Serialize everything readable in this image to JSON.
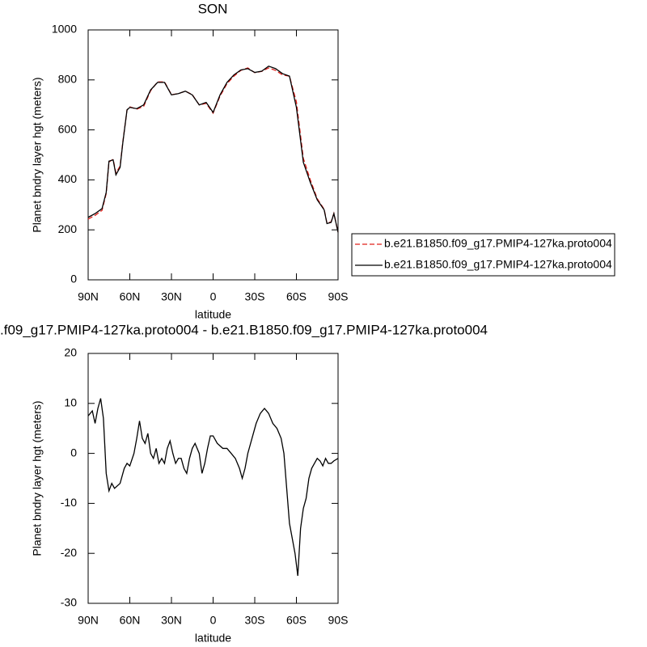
{
  "chart_data": [
    {
      "type": "line",
      "title": "SON",
      "xlabel": "latitude",
      "ylabel": "Planet bndry layer hgt (meters)",
      "x": [
        90,
        85,
        80,
        77,
        75,
        72,
        70,
        67,
        65,
        62,
        60,
        55,
        50,
        45,
        40,
        35,
        30,
        25,
        20,
        15,
        10,
        5,
        0,
        -5,
        -10,
        -15,
        -20,
        -25,
        -30,
        -35,
        -40,
        -45,
        -50,
        -55,
        -60,
        -65,
        -70,
        -75,
        -80,
        -82,
        -85,
        -87,
        -90
      ],
      "series": [
        {
          "name": "b.e21.B1850.f09_g17.PMIP4-127ka.proto004",
          "color": "#e0201b",
          "dashed": true,
          "values": [
            243,
            258,
            278,
            345,
            472,
            482,
            428,
            455,
            553,
            680,
            692,
            683,
            694,
            757,
            792,
            792,
            741,
            745,
            755,
            741,
            700,
            706,
            667,
            735,
            785,
            815,
            838,
            848,
            829,
            834,
            848,
            838,
            820,
            815,
            712,
            486,
            400,
            325,
            282,
            227,
            232,
            266,
            191
          ]
        },
        {
          "name": "b.e21.B1850.f09_g17.PMIP4-127ka.proto004",
          "color": "#000000",
          "dashed": false,
          "values": [
            250,
            265,
            285,
            350,
            475,
            480,
            420,
            450,
            550,
            680,
            690,
            685,
            700,
            760,
            790,
            790,
            740,
            745,
            755,
            740,
            700,
            710,
            670,
            740,
            790,
            820,
            840,
            845,
            830,
            835,
            855,
            845,
            825,
            815,
            690,
            470,
            390,
            320,
            280,
            225,
            230,
            265,
            190
          ]
        }
      ],
      "xlim": [
        90,
        -90
      ],
      "xticks": [
        {
          "value": 90,
          "label": "90N"
        },
        {
          "value": 60,
          "label": "60N"
        },
        {
          "value": 30,
          "label": "30N"
        },
        0,
        {
          "value": -30,
          "label": "30S"
        },
        {
          "value": -60,
          "label": "60S"
        },
        {
          "value": -90,
          "label": "90S"
        }
      ],
      "ylim": [
        0,
        1000
      ],
      "yticks": [
        0,
        200,
        400,
        600,
        800,
        1000
      ],
      "legend": "right"
    },
    {
      "type": "line",
      "title": ".f09_g17.PMIP4-127ka.proto004 - b.e21.B1850.f09_g17.PMIP4-127ka.proto004",
      "xlabel": "latitude",
      "ylabel": "Planet bndry layer hgt (meters)",
      "x": [
        90,
        87,
        85,
        83,
        81,
        79,
        77,
        75,
        73,
        71,
        67,
        64,
        62,
        60,
        57,
        55,
        53,
        51,
        49,
        47,
        45,
        43,
        41,
        39,
        37,
        35,
        33,
        31,
        29,
        27,
        25,
        23,
        21,
        19,
        17,
        15,
        13,
        10,
        8,
        6,
        4,
        2,
        0,
        -3,
        -7,
        -10,
        -13,
        -16,
        -19,
        -21,
        -23,
        -25,
        -28,
        -31,
        -34,
        -37,
        -40,
        -43,
        -46,
        -49,
        -51,
        -53,
        -55,
        -57,
        -59,
        -61,
        -63,
        -65,
        -67,
        -69,
        -71,
        -73,
        -75,
        -77,
        -79,
        -81,
        -83,
        -85,
        -87,
        -90
      ],
      "series": [
        {
          "color": "#000000",
          "dashed": false,
          "values": [
            7.5,
            8.5,
            6,
            9,
            11,
            7,
            -4,
            -7.5,
            -6,
            -7,
            -6,
            -3,
            -2,
            -2.5,
            0,
            3,
            6.5,
            3,
            2,
            4,
            0,
            -1,
            1,
            -2,
            -1,
            -2,
            1,
            2.5,
            0,
            -2,
            -1,
            -1,
            -3,
            -4,
            -1,
            1,
            2,
            0,
            -4,
            -2,
            1,
            3.5,
            3.5,
            2,
            1,
            1,
            0,
            -1,
            -3,
            -5,
            -3,
            0,
            3,
            6,
            8,
            9,
            8,
            6,
            5,
            3,
            0,
            -7,
            -14,
            -17,
            -20,
            -24.5,
            -15,
            -11,
            -9,
            -5,
            -3,
            -2,
            -1,
            -1.5,
            -2.5,
            -1,
            -2,
            -2,
            -1.5,
            -1
          ]
        }
      ],
      "xlim": [
        90,
        -90
      ],
      "xticks": [
        {
          "value": 90,
          "label": "90N"
        },
        {
          "value": 60,
          "label": "60N"
        },
        {
          "value": 30,
          "label": "30N"
        },
        0,
        {
          "value": -30,
          "label": "30S"
        },
        {
          "value": -60,
          "label": "60S"
        },
        {
          "value": -90,
          "label": "90S"
        }
      ],
      "ylim": [
        -30,
        20
      ],
      "yticks": [
        -30,
        -20,
        -10,
        0,
        10,
        20
      ]
    }
  ]
}
